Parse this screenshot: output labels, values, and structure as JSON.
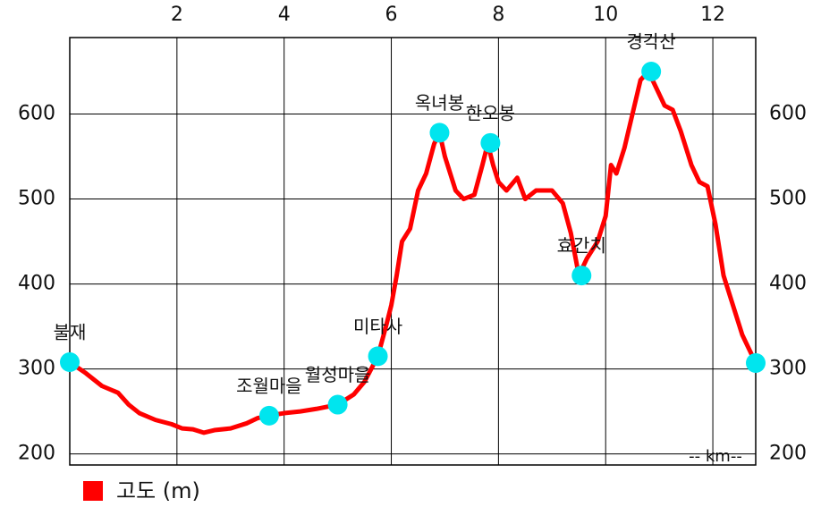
{
  "chart_data": {
    "type": "line",
    "x": [
      0,
      0.3,
      0.6,
      0.9,
      1.1,
      1.3,
      1.6,
      1.9,
      2.1,
      2.3,
      2.5,
      2.7,
      3.0,
      3.3,
      3.5,
      3.7,
      4.0,
      4.3,
      4.6,
      5.0,
      5.3,
      5.5,
      5.75,
      5.9,
      6.0,
      6.1,
      6.2,
      6.35,
      6.5,
      6.65,
      6.8,
      6.9,
      7.0,
      7.2,
      7.35,
      7.55,
      7.7,
      7.8,
      7.9,
      8.0,
      8.15,
      8.35,
      8.5,
      8.7,
      9.0,
      9.2,
      9.35,
      9.5,
      9.65,
      9.85,
      10.0,
      10.1,
      10.2,
      10.35,
      10.5,
      10.65,
      10.8,
      10.95,
      11.1,
      11.25,
      11.4,
      11.6,
      11.75,
      11.9,
      12.05,
      12.2,
      12.4,
      12.55,
      12.8
    ],
    "series": [
      {
        "name": "고도 (m)",
        "color": "#ff0000",
        "values": [
          308,
          295,
          280,
          272,
          258,
          248,
          240,
          235,
          230,
          229,
          225,
          228,
          230,
          236,
          242,
          245,
          248,
          250,
          253,
          258,
          270,
          285,
          315,
          350,
          375,
          410,
          450,
          465,
          510,
          530,
          565,
          578,
          550,
          510,
          500,
          505,
          540,
          565,
          540,
          520,
          510,
          525,
          500,
          510,
          510,
          495,
          460,
          410,
          430,
          450,
          480,
          540,
          530,
          560,
          600,
          640,
          650,
          630,
          610,
          605,
          580,
          540,
          520,
          515,
          470,
          410,
          370,
          340,
          307
        ]
      }
    ],
    "waypoints": {
      "x": [
        0,
        3.72,
        5.0,
        5.75,
        6.9,
        7.85,
        9.55,
        10.85,
        12.8
      ],
      "y": [
        308,
        245,
        258,
        315,
        578,
        566,
        410,
        650,
        307
      ],
      "labels": [
        "불재",
        "조월마을",
        "월성마을",
        "미타사",
        "옥녀봉",
        "한오봉",
        "효간치",
        "경각산",
        null
      ],
      "color": "#00e5ee"
    },
    "xlabel": "-- km--",
    "xlim": [
      0,
      12.8
    ],
    "xticks": [
      2,
      4,
      6,
      8,
      10,
      12
    ],
    "ylim": [
      187,
      690
    ],
    "yticks": [
      200,
      300,
      400,
      500,
      600
    ],
    "grid": true
  }
}
